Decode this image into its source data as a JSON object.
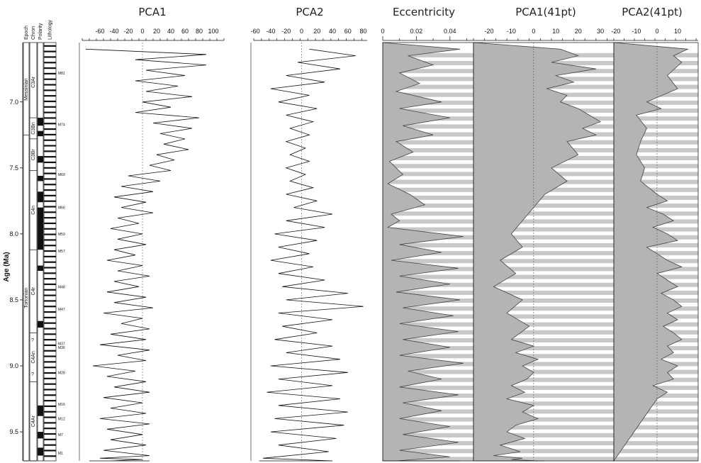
{
  "strat": {
    "headers": [
      "Epoch",
      "Chron",
      "Polarity",
      "Lithology"
    ],
    "epochs": [
      {
        "label": "Messinian",
        "from": 6.56,
        "to": 7.25
      },
      {
        "label": "Tortonian",
        "from": 7.25,
        "to": 9.72
      }
    ],
    "chrons": [
      {
        "label": "C3Ar",
        "from": 6.58,
        "to": 7.12
      },
      {
        "label": "C3Bn",
        "from": 7.12,
        "to": 7.28
      },
      {
        "label": "C3Br",
        "from": 7.28,
        "to": 7.52
      },
      {
        "label": "C4n",
        "from": 7.52,
        "to": 8.12
      },
      {
        "label": "C4r",
        "from": 8.12,
        "to": 8.75
      },
      {
        "label": "C4An",
        "from": 8.75,
        "to": 9.12
      },
      {
        "label": "C4Ar",
        "from": 9.12,
        "to": 9.72
      }
    ],
    "question_marks": [
      {
        "label": "?",
        "age": 8.8
      },
      {
        "label": "?",
        "age": 9.06
      }
    ],
    "normal_polarity": [
      [
        7.12,
        7.18
      ],
      [
        7.22,
        7.26
      ],
      [
        7.41,
        7.46
      ],
      [
        7.56,
        7.6
      ],
      [
        7.68,
        7.76
      ],
      [
        7.8,
        8.12
      ],
      [
        8.24,
        8.28
      ],
      [
        8.66,
        8.71
      ],
      [
        9.3,
        9.38
      ],
      [
        9.5,
        9.55
      ],
      [
        9.62,
        9.68
      ]
    ],
    "markers": [
      {
        "label": "M81",
        "age": 6.78
      },
      {
        "label": "M74",
        "age": 7.17
      },
      {
        "label": "M69",
        "age": 7.55
      },
      {
        "label": "M66",
        "age": 7.8
      },
      {
        "label": "M59",
        "age": 8.0
      },
      {
        "label": "M57",
        "age": 8.13
      },
      {
        "label": "M48",
        "age": 8.4
      },
      {
        "label": "M47",
        "age": 8.57
      },
      {
        "label": "M37",
        "age": 8.83
      },
      {
        "label": "M36",
        "age": 8.86
      },
      {
        "label": "M28",
        "age": 9.05
      },
      {
        "label": "M16",
        "age": 9.29
      },
      {
        "label": "M12",
        "age": 9.4
      },
      {
        "label": "M7",
        "age": 9.52
      },
      {
        "label": "M1",
        "age": 9.66
      }
    ]
  },
  "chart_data": [
    {
      "type": "line",
      "title": "PCA1",
      "ylabel": "Age (Ma)",
      "ylim": [
        6.55,
        9.72
      ],
      "y_ticks": [
        "7.0",
        "7.5",
        "8.0",
        "8.5",
        "9.0",
        "9.5"
      ],
      "xlim": [
        -85,
        115
      ],
      "x_ticks": [
        "-60",
        "-40",
        "-20",
        "0",
        "20",
        "40",
        "60",
        "80",
        "100"
      ],
      "x": [
        -80,
        90,
        -10,
        90,
        5,
        60,
        -10,
        50,
        5,
        70,
        0,
        40,
        -10,
        80,
        15,
        70,
        25,
        60,
        30,
        65,
        20,
        45,
        10,
        40,
        -20,
        25,
        -30,
        15,
        -40,
        5,
        -30,
        15,
        -35,
        -5,
        -45,
        0,
        -35,
        5,
        -40,
        -10,
        -50,
        0,
        -35,
        10,
        -40,
        -5,
        -50,
        5,
        -40,
        15,
        -55,
        0,
        -30,
        10,
        -45,
        5,
        -60,
        10,
        -35,
        5,
        -70,
        -10,
        -50,
        5,
        -40,
        10,
        -55,
        0,
        -45,
        5,
        -60,
        10,
        -50,
        0,
        -45,
        5,
        -55,
        10,
        -60,
        0,
        -45,
        5,
        -50,
        10,
        -55,
        5,
        -75,
        0,
        -50,
        10,
        -60,
        0,
        -55,
        5,
        -45,
        -10,
        -50,
        0
      ],
      "y": [
        6.6,
        6.64,
        6.68,
        6.72,
        6.76,
        6.8,
        6.84,
        6.88,
        6.92,
        6.96,
        7.0,
        7.04,
        7.08,
        7.12,
        7.16,
        7.2,
        7.24,
        7.28,
        7.32,
        7.36,
        7.4,
        7.44,
        7.48,
        7.52,
        7.56,
        7.6,
        7.64,
        7.68,
        7.72,
        7.76,
        7.8,
        7.84,
        7.88,
        7.92,
        7.96,
        8.0,
        8.04,
        8.08,
        8.12,
        8.16,
        8.2,
        8.24,
        8.28,
        8.32,
        8.36,
        8.4,
        8.44,
        8.48,
        8.52,
        8.56,
        8.6,
        8.64,
        8.68,
        8.72,
        8.76,
        8.8,
        8.84,
        8.88,
        8.92,
        8.96,
        9.0,
        9.04,
        9.08,
        9.12,
        9.16,
        9.2,
        9.24,
        9.28,
        9.32,
        9.36,
        9.4,
        9.44,
        9.48,
        9.52,
        9.56,
        9.6,
        9.64,
        9.68,
        9.7,
        9.71,
        9.72,
        9.72,
        9.72,
        9.72,
        9.72,
        9.72,
        9.72,
        9.72,
        9.72,
        9.72,
        9.72,
        9.72,
        9.72,
        9.72,
        9.72,
        9.72,
        9.72,
        9.72
      ],
      "zero_line": 0
    },
    {
      "type": "line",
      "title": "PCA2",
      "ylim": [
        6.55,
        9.72
      ],
      "xlim": [
        -62,
        85
      ],
      "x_ticks": [
        "-60",
        "-40",
        "-20",
        "0",
        "20",
        "40",
        "60",
        "80"
      ],
      "x": [
        10,
        70,
        -5,
        50,
        -20,
        30,
        -40,
        10,
        -30,
        20,
        -20,
        15,
        -15,
        10,
        -20,
        5,
        -15,
        10,
        -20,
        5,
        -15,
        15,
        -20,
        20,
        -10,
        40,
        -20,
        30,
        -35,
        20,
        -30,
        10,
        -40,
        15,
        -30,
        30,
        -25,
        60,
        -20,
        80,
        -30,
        40,
        -25,
        20,
        -35,
        40,
        -20,
        50,
        -40,
        60,
        -30,
        40,
        -45,
        50,
        -30,
        60,
        -35,
        55,
        -40,
        45,
        -30,
        35,
        -50,
        40,
        -35,
        30,
        -55,
        20,
        -30,
        -40
      ],
      "y": [
        6.6,
        6.65,
        6.7,
        6.75,
        6.8,
        6.85,
        6.9,
        6.95,
        7.0,
        7.05,
        7.1,
        7.15,
        7.2,
        7.25,
        7.3,
        7.35,
        7.4,
        7.45,
        7.5,
        7.55,
        7.6,
        7.65,
        7.7,
        7.75,
        7.8,
        7.85,
        7.9,
        7.95,
        8.0,
        8.05,
        8.1,
        8.15,
        8.2,
        8.25,
        8.3,
        8.35,
        8.4,
        8.45,
        8.5,
        8.55,
        8.6,
        8.65,
        8.7,
        8.75,
        8.8,
        8.85,
        8.9,
        8.95,
        9.0,
        9.05,
        9.1,
        9.15,
        9.2,
        9.25,
        9.3,
        9.35,
        9.4,
        9.45,
        9.5,
        9.55,
        9.6,
        9.65,
        9.7,
        9.72,
        9.72,
        9.72,
        9.72,
        9.72,
        9.72,
        9.72
      ],
      "zero_line": 0
    },
    {
      "type": "area",
      "title": "Eccentricity",
      "ylim": [
        6.55,
        9.72
      ],
      "xlim": [
        0,
        0.054
      ],
      "x_ticks": [
        "0",
        "0.02",
        "0.04"
      ],
      "x": [
        0.046,
        0.015,
        0.03,
        0.01,
        0.022,
        0.008,
        0.035,
        0.01,
        0.04,
        0.012,
        0.03,
        0.008,
        0.018,
        0.004,
        0.012,
        0.003,
        0.016,
        0.025,
        0.005,
        0.01,
        0.003,
        0.048,
        0.01,
        0.035,
        0.005,
        0.045,
        0.01,
        0.04,
        0.008,
        0.046,
        0.012,
        0.042,
        0.01,
        0.045,
        0.012,
        0.04,
        0.01,
        0.048,
        0.015,
        0.035,
        0.01,
        0.045,
        0.012,
        0.035,
        0.01,
        0.04,
        0.012,
        0.045,
        0.01,
        0.04,
        0.008,
        0.046,
        0.012,
        0.042,
        0.01,
        0.04,
        0.015
      ],
      "y": [
        6.6,
        6.65,
        6.72,
        6.78,
        6.86,
        6.92,
        7.0,
        7.05,
        7.12,
        7.18,
        7.25,
        7.3,
        7.38,
        7.45,
        7.55,
        7.62,
        7.7,
        7.78,
        7.85,
        7.9,
        7.95,
        8.02,
        8.08,
        8.14,
        8.2,
        8.26,
        8.32,
        8.38,
        8.44,
        8.5,
        8.56,
        8.62,
        8.68,
        8.74,
        8.8,
        8.86,
        8.92,
        8.98,
        9.04,
        9.1,
        9.16,
        9.22,
        9.28,
        9.34,
        9.4,
        9.46,
        9.52,
        9.58,
        9.64,
        9.69,
        9.72,
        9.72,
        9.72,
        9.72,
        9.72,
        9.72,
        9.72
      ],
      "grid": "horizontal bands"
    },
    {
      "type": "area",
      "title": "PCA1(41pt)",
      "ylim": [
        6.55,
        9.72
      ],
      "xlim": [
        -27,
        36
      ],
      "x_ticks": [
        "-20",
        "-10",
        "0",
        "10",
        "20",
        "30"
      ],
      "x": [
        12,
        20,
        8,
        28,
        10,
        18,
        6,
        15,
        12,
        20,
        25,
        30,
        22,
        28,
        15,
        20,
        8,
        15,
        5,
        0,
        -5,
        -10,
        -5,
        -15,
        -8,
        -18,
        -5,
        -12,
        -2,
        -10,
        0,
        -8,
        2,
        -5,
        0,
        -3,
        -10,
        -4,
        -12,
        0,
        -5,
        2,
        -8,
        -12,
        -4,
        -15,
        -6,
        -18,
        -5,
        -10,
        2,
        -5,
        0,
        5,
        -2
      ],
      "y": [
        6.6,
        6.65,
        6.7,
        6.75,
        6.8,
        6.85,
        6.9,
        6.95,
        7.0,
        7.05,
        7.1,
        7.15,
        7.2,
        7.25,
        7.3,
        7.4,
        7.5,
        7.6,
        7.7,
        7.8,
        7.9,
        8.0,
        8.1,
        8.2,
        8.3,
        8.4,
        8.5,
        8.6,
        8.7,
        8.8,
        8.85,
        8.9,
        8.95,
        9.0,
        9.05,
        9.1,
        9.15,
        9.2,
        9.25,
        9.3,
        9.35,
        9.4,
        9.45,
        9.5,
        9.55,
        9.6,
        9.65,
        9.68,
        9.7,
        9.71,
        9.72,
        9.72,
        9.72,
        9.72,
        9.72
      ],
      "zero_line": 0,
      "grid": "horizontal bands"
    },
    {
      "type": "area",
      "title": "PCA2(41pt)",
      "ylim": [
        6.55,
        9.72
      ],
      "xlim": [
        -21,
        20
      ],
      "x_ticks": [
        "-20",
        "-10",
        "0",
        "10"
      ],
      "x": [
        15,
        8,
        12,
        5,
        10,
        -5,
        2,
        -10,
        -5,
        -8,
        -10,
        -6,
        -8,
        0,
        5,
        -5,
        3,
        8,
        -2,
        5,
        10,
        -5,
        0,
        5,
        12,
        0,
        5,
        10,
        2,
        8,
        12,
        5,
        10,
        3,
        8,
        12,
        5,
        8,
        2,
        10,
        5,
        8,
        -2,
        5,
        0
      ],
      "y": [
        6.6,
        6.65,
        6.7,
        6.8,
        6.9,
        7.0,
        7.05,
        7.1,
        7.2,
        7.3,
        7.4,
        7.5,
        7.6,
        7.7,
        7.75,
        7.8,
        7.85,
        7.9,
        7.95,
        8.0,
        8.05,
        8.1,
        8.15,
        8.2,
        8.25,
        8.3,
        8.35,
        8.4,
        8.45,
        8.5,
        8.55,
        8.6,
        8.65,
        8.7,
        8.75,
        8.8,
        8.85,
        8.9,
        8.95,
        9.0,
        9.05,
        9.1,
        9.15,
        9.2,
        9.25
      ],
      "zero_line": 0,
      "grid": "horizontal bands"
    }
  ]
}
